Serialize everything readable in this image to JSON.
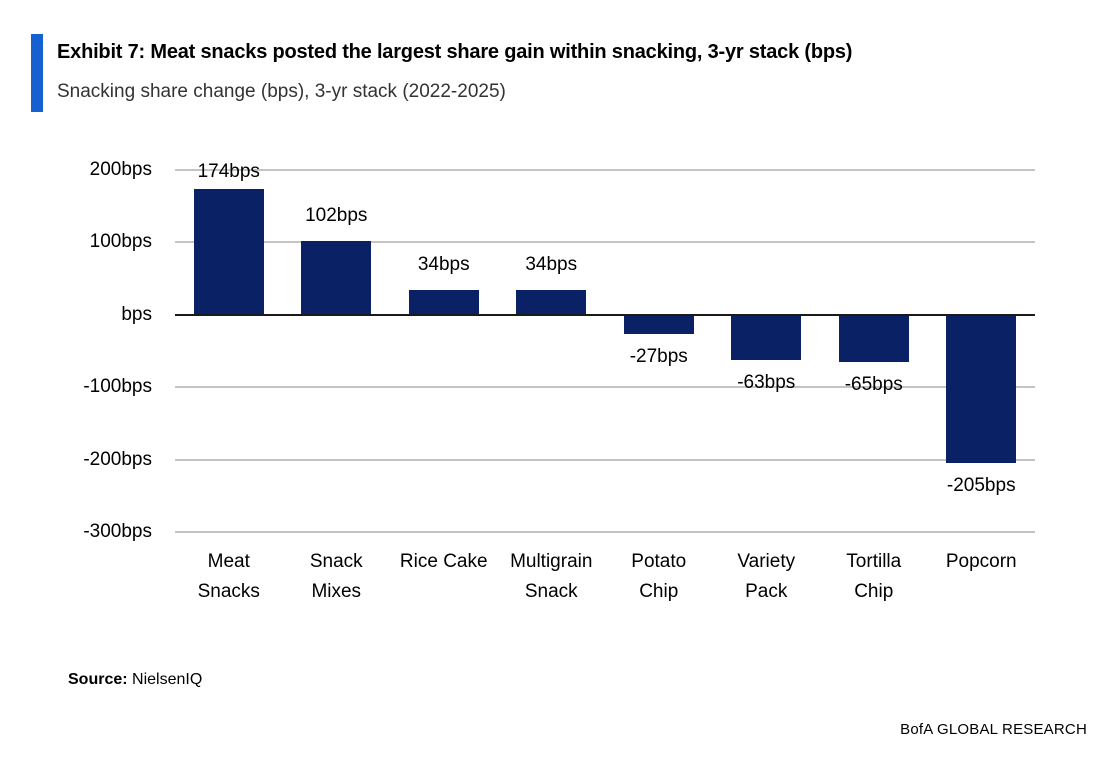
{
  "header": {
    "title": "Exhibit 7: Meat snacks posted the largest share gain within snacking, 3-yr stack (bps)",
    "subtitle": "Snacking share change (bps), 3-yr stack (2022-2025)"
  },
  "chart_data": {
    "type": "bar",
    "title": "Exhibit 7: Meat snacks posted the largest share gain within snacking, 3-yr stack (bps)",
    "subtitle": "Snacking share change (bps), 3-yr stack (2022-2025)",
    "categories": [
      "Meat Snacks",
      "Snack Mixes",
      "Rice Cake",
      "Multigrain Snack",
      "Potato Chip",
      "Variety Pack",
      "Tortilla Chip",
      "Popcorn"
    ],
    "category_lines": [
      [
        "Meat",
        "Snacks"
      ],
      [
        "Snack",
        "Mixes"
      ],
      [
        "Rice Cake"
      ],
      [
        "Multigrain",
        "Snack"
      ],
      [
        "Potato",
        "Chip"
      ],
      [
        "Variety",
        "Pack"
      ],
      [
        "Tortilla",
        "Chip"
      ],
      [
        "Popcorn"
      ]
    ],
    "values": [
      174,
      102,
      34,
      34,
      -27,
      -63,
      -65,
      -205
    ],
    "value_labels": [
      "174bps",
      "102bps",
      "34bps",
      "34bps",
      "-27bps",
      "-63bps",
      "-65bps",
      "-205bps"
    ],
    "unit": "bps",
    "xlabel": "",
    "ylabel": "",
    "ylim": [
      -300,
      200
    ],
    "ytick_values": [
      200,
      100,
      0,
      -100,
      -200,
      -300
    ],
    "ytick_labels": [
      "200bps",
      "100bps",
      "bps",
      "-100bps",
      "-200bps",
      "-300bps"
    ],
    "grid": true,
    "legend": false
  },
  "source": {
    "label": "Source:",
    "value": "NielsenIQ"
  },
  "footer": {
    "brand": "BofA GLOBAL RESEARCH"
  },
  "colors": {
    "bar": "#0a2166",
    "accent": "#1660d2",
    "gridline": "#c4c4c4",
    "zero_line": "#1a1a1a"
  }
}
